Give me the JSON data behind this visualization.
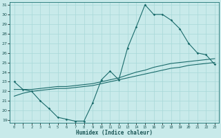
{
  "xlabel": "Humidex (Indice chaleur)",
  "bg_color": "#c8eaea",
  "grid_color": "#a8d8d8",
  "line_color": "#1a6b6b",
  "curve1_x": [
    0,
    1,
    2,
    3,
    4,
    5,
    6,
    7,
    8,
    9,
    10,
    11,
    12,
    13,
    14,
    15,
    16,
    17,
    18,
    19,
    20,
    21,
    22,
    23
  ],
  "curve1_y": [
    23.0,
    22.2,
    22.0,
    21.0,
    20.2,
    19.3,
    19.1,
    18.9,
    18.9,
    20.8,
    23.2,
    24.1,
    23.2,
    26.5,
    28.7,
    31.0,
    30.0,
    30.0,
    29.4,
    28.5,
    27.0,
    26.0,
    25.8,
    24.8
  ],
  "curve2_x": [
    0,
    1,
    2,
    3,
    4,
    5,
    6,
    7,
    8,
    9,
    10,
    11,
    12,
    13,
    14,
    15,
    16,
    17,
    18,
    19,
    20,
    21,
    22,
    23
  ],
  "curve2_y": [
    21.5,
    21.8,
    22.0,
    22.1,
    22.2,
    22.3,
    22.3,
    22.4,
    22.5,
    22.6,
    22.8,
    23.0,
    23.2,
    23.4,
    23.6,
    23.8,
    24.0,
    24.2,
    24.4,
    24.5,
    24.7,
    24.8,
    24.9,
    25.0
  ],
  "curve3_x": [
    0,
    1,
    2,
    3,
    4,
    5,
    6,
    7,
    8,
    9,
    10,
    11,
    12,
    13,
    14,
    15,
    16,
    17,
    18,
    19,
    20,
    21,
    22,
    23
  ],
  "curve3_y": [
    22.2,
    22.2,
    22.2,
    22.3,
    22.4,
    22.5,
    22.5,
    22.6,
    22.7,
    22.8,
    23.0,
    23.2,
    23.4,
    23.7,
    24.0,
    24.2,
    24.5,
    24.7,
    24.9,
    25.0,
    25.1,
    25.2,
    25.3,
    25.4
  ],
  "ylim": [
    18.7,
    31.3
  ],
  "xlim": [
    -0.5,
    23.5
  ],
  "yticks": [
    19,
    20,
    21,
    22,
    23,
    24,
    25,
    26,
    27,
    28,
    29,
    30,
    31
  ],
  "xticks": [
    0,
    1,
    2,
    3,
    4,
    5,
    6,
    7,
    8,
    9,
    10,
    11,
    12,
    13,
    14,
    15,
    16,
    17,
    18,
    19,
    20,
    21,
    22,
    23
  ]
}
